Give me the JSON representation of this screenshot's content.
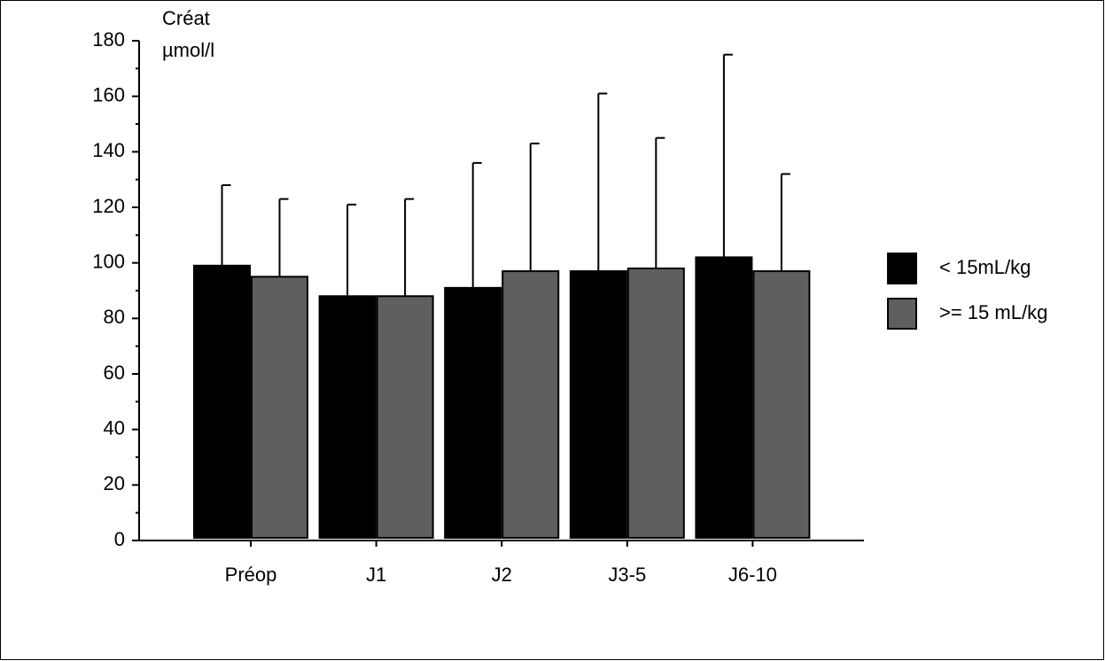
{
  "chart_data": {
    "type": "bar",
    "y_label_lines": [
      "Créat",
      "µmol/l"
    ],
    "categories": [
      "Préop",
      "J1",
      "J2",
      "J3-5",
      "J6-10"
    ],
    "series": [
      {
        "name": "< 15mL/kg",
        "color": "#000000",
        "values": [
          99,
          88,
          91,
          97,
          102
        ],
        "errors": [
          29,
          33,
          45,
          64,
          73
        ]
      },
      {
        "name": ">= 15 mL/kg",
        "color": "#5f5f5f",
        "values": [
          95,
          88,
          97,
          98,
          97
        ],
        "errors": [
          28,
          35,
          46,
          47,
          35
        ]
      }
    ],
    "ylim": [
      0,
      180
    ],
    "yticks": [
      0,
      20,
      40,
      60,
      80,
      100,
      120,
      140,
      160,
      180
    ],
    "legend": "right"
  }
}
